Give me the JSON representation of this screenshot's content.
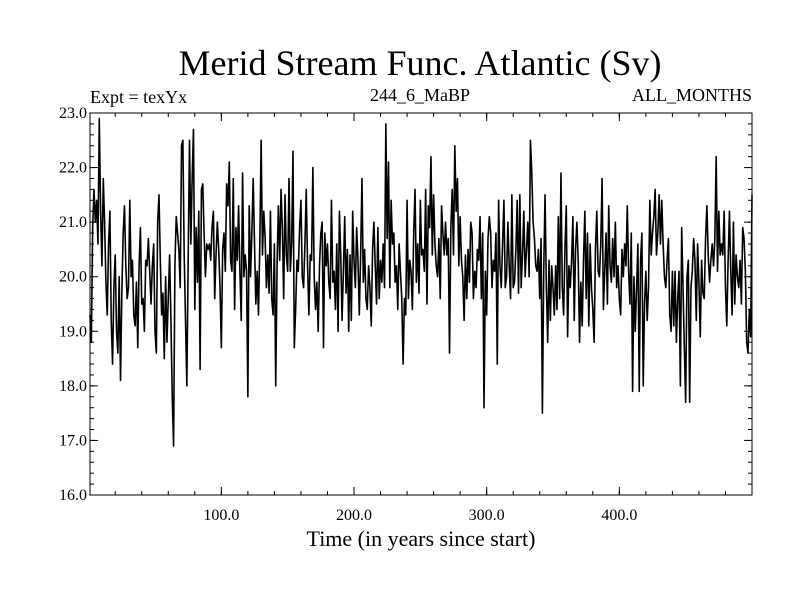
{
  "chart_data": {
    "type": "line",
    "title": "Merid Stream Func. Atlantic (Sv)",
    "subtitle_left": "Expt = texYx",
    "subtitle_center": "244_6_MaBP",
    "subtitle_right": "ALL_MONTHS",
    "xlabel": "Time (in years since start)",
    "ylabel": "",
    "xlim": [
      1,
      500
    ],
    "ylim": [
      16.0,
      23.0
    ],
    "xticks": [
      100,
      200,
      300,
      400
    ],
    "xtick_labels": [
      "100.0",
      "200.0",
      "300.0",
      "400.0"
    ],
    "yticks": [
      16,
      17,
      18,
      19,
      20,
      21,
      22,
      23
    ],
    "ytick_labels": [
      "16.0",
      "17.0",
      "18.0",
      "19.0",
      "20.0",
      "21.0",
      "22.0",
      "23.0"
    ],
    "grid": false,
    "line_color": "#000000",
    "series": [
      {
        "x_start": 1,
        "x_step": 1,
        "values": [
          19.3,
          18.8,
          20.9,
          21.6,
          21.0,
          21.4,
          20.6,
          22.9,
          21.2,
          20.2,
          21.8,
          21.0,
          19.9,
          19.3,
          20.6,
          21.2,
          19.2,
          18.4,
          19.8,
          20.4,
          19.0,
          18.6,
          20.0,
          18.1,
          19.7,
          20.8,
          21.3,
          20.2,
          19.6,
          19.8,
          21.4,
          20.0,
          20.3,
          19.3,
          19.1,
          19.9,
          18.7,
          20.2,
          20.9,
          19.5,
          19.6,
          19.0,
          20.3,
          20.2,
          20.7,
          20.1,
          19.5,
          20.2,
          20.6,
          19.0,
          18.6,
          21.0,
          21.5,
          20.3,
          19.3,
          19.7,
          18.5,
          20.0,
          18.8,
          19.6,
          20.4,
          19.2,
          17.8,
          16.9,
          20.2,
          21.1,
          20.8,
          20.5,
          19.8,
          22.4,
          22.5,
          20.4,
          19.2,
          18.0,
          20.3,
          22.5,
          20.6,
          21.8,
          22.7,
          19.4,
          20.9,
          19.9,
          21.2,
          18.3,
          21.6,
          21.7,
          20.8,
          20.0,
          20.6,
          20.5,
          20.6,
          20.3,
          20.9,
          21.2,
          19.6,
          20.4,
          21.0,
          20.5,
          19.8,
          18.7,
          20.5,
          20.8,
          20.1,
          21.7,
          21.3,
          22.1,
          20.3,
          20.1,
          21.8,
          19.4,
          20.9,
          20.3,
          21.3,
          20.1,
          19.2,
          21.9,
          20.0,
          20.4,
          20.1,
          17.8,
          21.3,
          20.0,
          20.8,
          21.8,
          20.6,
          19.5,
          20.1,
          19.3,
          20.6,
          22.5,
          20.4,
          21.2,
          20.7,
          19.8,
          20.4,
          19.7,
          21.2,
          19.6,
          19.3,
          20.6,
          18.0,
          20.2,
          21.3,
          20.3,
          21.6,
          20.9,
          19.6,
          21.5,
          20.4,
          20.1,
          21.8,
          20.1,
          20.6,
          22.3,
          18.7,
          19.4,
          20.3,
          20.1,
          20.9,
          21.4,
          20.0,
          19.8,
          20.6,
          21.6,
          20.2,
          19.3,
          20.4,
          20.3,
          22.0,
          20.0,
          19.4,
          19.9,
          19.0,
          20.2,
          20.8,
          21.0,
          18.7,
          20.8,
          20.2,
          20.6,
          19.9,
          19.6,
          21.4,
          19.9,
          20.1,
          19.4,
          20.6,
          19.0,
          21.2,
          20.4,
          19.2,
          20.1,
          21.1,
          19.7,
          20.5,
          19.0,
          20.4,
          19.2,
          21.2,
          20.3,
          19.8,
          20.9,
          20.3,
          19.3,
          20.4,
          21.8,
          19.9,
          20.5,
          19.6,
          19.4,
          20.2,
          19.8,
          19.1,
          20.5,
          21.0,
          20.2,
          19.5,
          20.9,
          19.6,
          20.3,
          19.9,
          20.6,
          19.8,
          22.8,
          20.7,
          22.1,
          19.8,
          21.4,
          20.6,
          20.8,
          19.9,
          20.2,
          19.4,
          20.6,
          20.1,
          19.6,
          18.4,
          19.6,
          19.3,
          21.4,
          19.6,
          20.3,
          20.1,
          19.4,
          20.8,
          21.6,
          19.9,
          20.6,
          19.7,
          21.4,
          20.4,
          20.5,
          20.1,
          21.6,
          19.5,
          21.3,
          20.9,
          22.2,
          20.4,
          21.5,
          20.6,
          20.2,
          20.0,
          20.7,
          19.6,
          21.3,
          20.8,
          20.4,
          21.0,
          20.4,
          20.7,
          18.6,
          20.9,
          21.6,
          20.4,
          22.4,
          21.2,
          21.8,
          20.2,
          21.1,
          20.3,
          20.0,
          19.2,
          20.4,
          19.6,
          20.5,
          19.9,
          21.0,
          20.8,
          19.6,
          20.1,
          19.8,
          20.5,
          20.3,
          21.1,
          19.6,
          20.8,
          17.6,
          20.1,
          19.3,
          20.7,
          21.1,
          20.8,
          19.8,
          20.3,
          20.1,
          20.8,
          18.4,
          21.4,
          20.2,
          19.8,
          20.6,
          21.4,
          19.8,
          20.0,
          21.0,
          20.2,
          19.6,
          21.5,
          19.8,
          19.9,
          20.5,
          21.4,
          19.7,
          21.5,
          19.8,
          20.4,
          21.2,
          20.0,
          20.5,
          21.0,
          20.0,
          22.5,
          21.9,
          21.0,
          20.7,
          20.2,
          20.1,
          20.5,
          19.6,
          20.7,
          17.5,
          20.1,
          21.5,
          19.8,
          18.8,
          20.3,
          19.2,
          20.2,
          19.8,
          19.3,
          20.2,
          19.4,
          21.1,
          19.6,
          21.9,
          19.8,
          19.3,
          20.5,
          21.3,
          18.9,
          20.2,
          19.8,
          20.3,
          21.1,
          19.2,
          20.5,
          21.0,
          20.3,
          18.8,
          19.9,
          19.1,
          20.3,
          21.2,
          19.6,
          20.8,
          19.1,
          20.6,
          19.8,
          19.4,
          18.8,
          20.5,
          21.2,
          20.1,
          20.0,
          20.6,
          21.8,
          19.4,
          20.1,
          20.8,
          19.5,
          21.3,
          20.2,
          19.9,
          20.7,
          20.0,
          21.0,
          19.8,
          20.2,
          19.6,
          19.3,
          20.5,
          20.0,
          20.6,
          20.2,
          21.3,
          20.1,
          19.5,
          20.8,
          17.9,
          20.0,
          19.0,
          19.8,
          20.6,
          17.9,
          20.3,
          20.8,
          18.0,
          19.5,
          20.1,
          19.2,
          19.8,
          21.4,
          20.4,
          20.8,
          21.1,
          21.6,
          20.4,
          20.8,
          21.5,
          20.6,
          21.4,
          20.6,
          20.0,
          19.8,
          20.3,
          20.7,
          19.3,
          19.0,
          20.1,
          19.1,
          20.1,
          18.8,
          19.6,
          20.1,
          18.0,
          20.9,
          19.8,
          18.7,
          17.7,
          20.0,
          20.3,
          17.7,
          19.8,
          20.1,
          20.7,
          20.3,
          19.2,
          20.6,
          19.9,
          18.9,
          20.3,
          19.7,
          19.6,
          20.7,
          21.3,
          20.4,
          19.9,
          20.3,
          20.6,
          20.2,
          20.7,
          22.2,
          20.1,
          21.2,
          20.4,
          20.6,
          20.4,
          21.2,
          19.8,
          19.1,
          20.3,
          21.2,
          20.1,
          19.3,
          21.0,
          19.5,
          20.4,
          20.0,
          19.8,
          20.3,
          19.5,
          20.9,
          20.7,
          20.1,
          18.8,
          18.6,
          19.4,
          18.9,
          21.5
        ]
      }
    ]
  }
}
